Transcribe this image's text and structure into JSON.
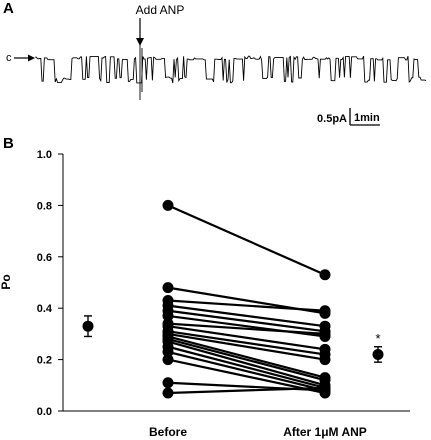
{
  "panels": {
    "a": "A",
    "b": "B"
  },
  "trace": {
    "event_label": "Add ANP",
    "closed_marker": "c",
    "scalebar_y_label": "0.5pA",
    "scalebar_x_label": "1min"
  },
  "chart_data": {
    "type": "scatter",
    "ylabel": "Po",
    "xlabel": "",
    "categories": [
      "Before",
      "After 1μM ANP"
    ],
    "ylim": [
      0.0,
      1.0
    ],
    "yticks": [
      "0.0",
      "0.2",
      "0.4",
      "0.6",
      "0.8",
      "1.0"
    ],
    "grid": false,
    "pairs": [
      [
        0.8,
        0.53
      ],
      [
        0.48,
        0.38
      ],
      [
        0.43,
        0.39
      ],
      [
        0.41,
        0.33
      ],
      [
        0.39,
        0.31
      ],
      [
        0.37,
        0.29
      ],
      [
        0.34,
        0.3
      ],
      [
        0.33,
        0.24
      ],
      [
        0.31,
        0.22
      ],
      [
        0.3,
        0.2
      ],
      [
        0.29,
        0.13
      ],
      [
        0.28,
        0.12
      ],
      [
        0.27,
        0.1
      ],
      [
        0.25,
        0.09
      ],
      [
        0.23,
        0.08
      ],
      [
        0.2,
        0.07
      ],
      [
        0.11,
        0.08
      ],
      [
        0.07,
        0.09
      ]
    ],
    "summary": [
      {
        "group": "Before",
        "mean": 0.33,
        "error": 0.04,
        "annotation": ""
      },
      {
        "group": "After 1μM ANP",
        "mean": 0.22,
        "error": 0.03,
        "annotation": "*"
      }
    ],
    "colors": {
      "ink": "#000000"
    }
  }
}
